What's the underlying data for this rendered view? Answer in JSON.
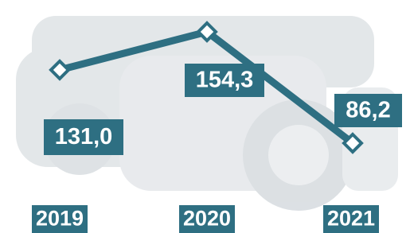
{
  "chart_data": {
    "type": "line",
    "categories": [
      "2019",
      "2020",
      "2021"
    ],
    "values": [
      131.0,
      154.3,
      86.2
    ],
    "value_labels": [
      "131,0",
      "154,3",
      "86,2"
    ],
    "color": "#2e6f82"
  }
}
